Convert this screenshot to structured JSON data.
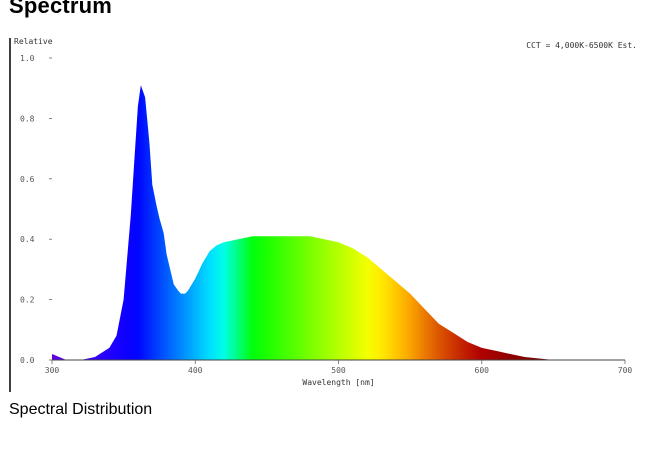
{
  "page": {
    "title": "Spectrum",
    "caption": "Spectral Distribution"
  },
  "chart_data": {
    "type": "area",
    "title": "",
    "ylabel": "Relative",
    "xlabel": "Wavelength [nm]",
    "annotation": "CCT = 4,000K-6500K Est.",
    "xlim": [
      300,
      700
    ],
    "ylim": [
      0,
      1.0
    ],
    "x_ticks": [
      300,
      400,
      500,
      600,
      700
    ],
    "x_tick_labels": [
      "300",
      "400",
      "500",
      "600",
      "700"
    ],
    "y_ticks": [
      0,
      0.2,
      0.4,
      0.6,
      0.8,
      1.0
    ],
    "y_tick_labels": [
      "0.0",
      "0.2",
      "0.4",
      "0.6",
      "0.8",
      "1.0"
    ],
    "fill": "visible-spectrum-gradient",
    "grid": false,
    "legend": "none",
    "series": [
      {
        "x": [
          300,
          305,
          310,
          320,
          330,
          340,
          345,
          350,
          355,
          358,
          360,
          362,
          365,
          368,
          370,
          373,
          375,
          378,
          380,
          383,
          385,
          388,
          390,
          393,
          395,
          400,
          405,
          410,
          415,
          420,
          430,
          440,
          450,
          460,
          470,
          480,
          490,
          500,
          510,
          520,
          530,
          540,
          550,
          560,
          570,
          580,
          590,
          600,
          610,
          620,
          630,
          640,
          650,
          660,
          670,
          680,
          690,
          700
        ],
        "y": [
          0.02,
          0.01,
          0.0,
          0.0,
          0.01,
          0.04,
          0.08,
          0.2,
          0.48,
          0.7,
          0.84,
          0.91,
          0.87,
          0.72,
          0.58,
          0.51,
          0.47,
          0.42,
          0.35,
          0.29,
          0.25,
          0.23,
          0.22,
          0.22,
          0.23,
          0.27,
          0.32,
          0.36,
          0.38,
          0.39,
          0.4,
          0.41,
          0.41,
          0.41,
          0.41,
          0.41,
          0.4,
          0.39,
          0.37,
          0.34,
          0.3,
          0.26,
          0.22,
          0.17,
          0.12,
          0.09,
          0.06,
          0.04,
          0.03,
          0.02,
          0.01,
          0.005,
          0.0,
          0.0,
          0.0,
          0.0,
          0.0,
          0.0
        ]
      }
    ]
  }
}
